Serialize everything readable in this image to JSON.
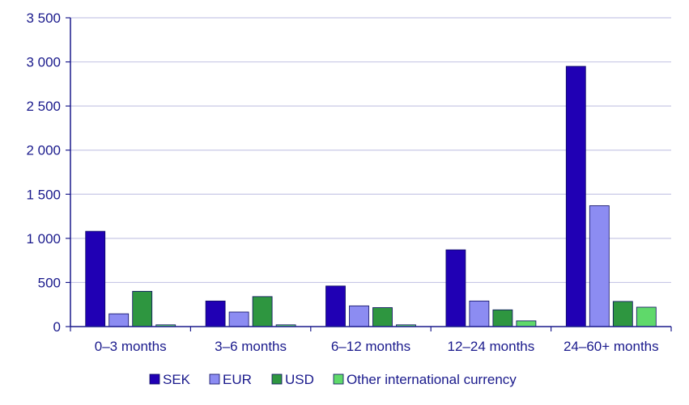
{
  "chart_data": {
    "type": "bar",
    "title": "",
    "xlabel": "",
    "ylabel": "",
    "ylim": [
      0,
      3500
    ],
    "yticks": [
      0,
      500,
      1000,
      1500,
      2000,
      2500,
      3000,
      3500
    ],
    "ytick_labels": [
      "0",
      "500",
      "1 000",
      "1 500",
      "2 000",
      "2 500",
      "3 000",
      "3 500"
    ],
    "grid": true,
    "legend_position": "bottom",
    "categories": [
      "0–3 months",
      "3–6 months",
      "6–12 months",
      "12–24 months",
      "24–60+ months"
    ],
    "series": [
      {
        "name": "SEK",
        "color": "#2000b4",
        "values": [
          1080,
          290,
          460,
          870,
          2950
        ]
      },
      {
        "name": "EUR",
        "color": "#8c8cf2",
        "values": [
          145,
          165,
          235,
          290,
          1370
        ]
      },
      {
        "name": "USD",
        "color": "#2e9640",
        "values": [
          400,
          340,
          215,
          190,
          285
        ]
      },
      {
        "name": "Other international currency",
        "color": "#5fd96a",
        "values": [
          20,
          20,
          20,
          65,
          220
        ]
      }
    ],
    "axis_color": "#1a1a8c",
    "grid_color": "#c8c8e6"
  }
}
